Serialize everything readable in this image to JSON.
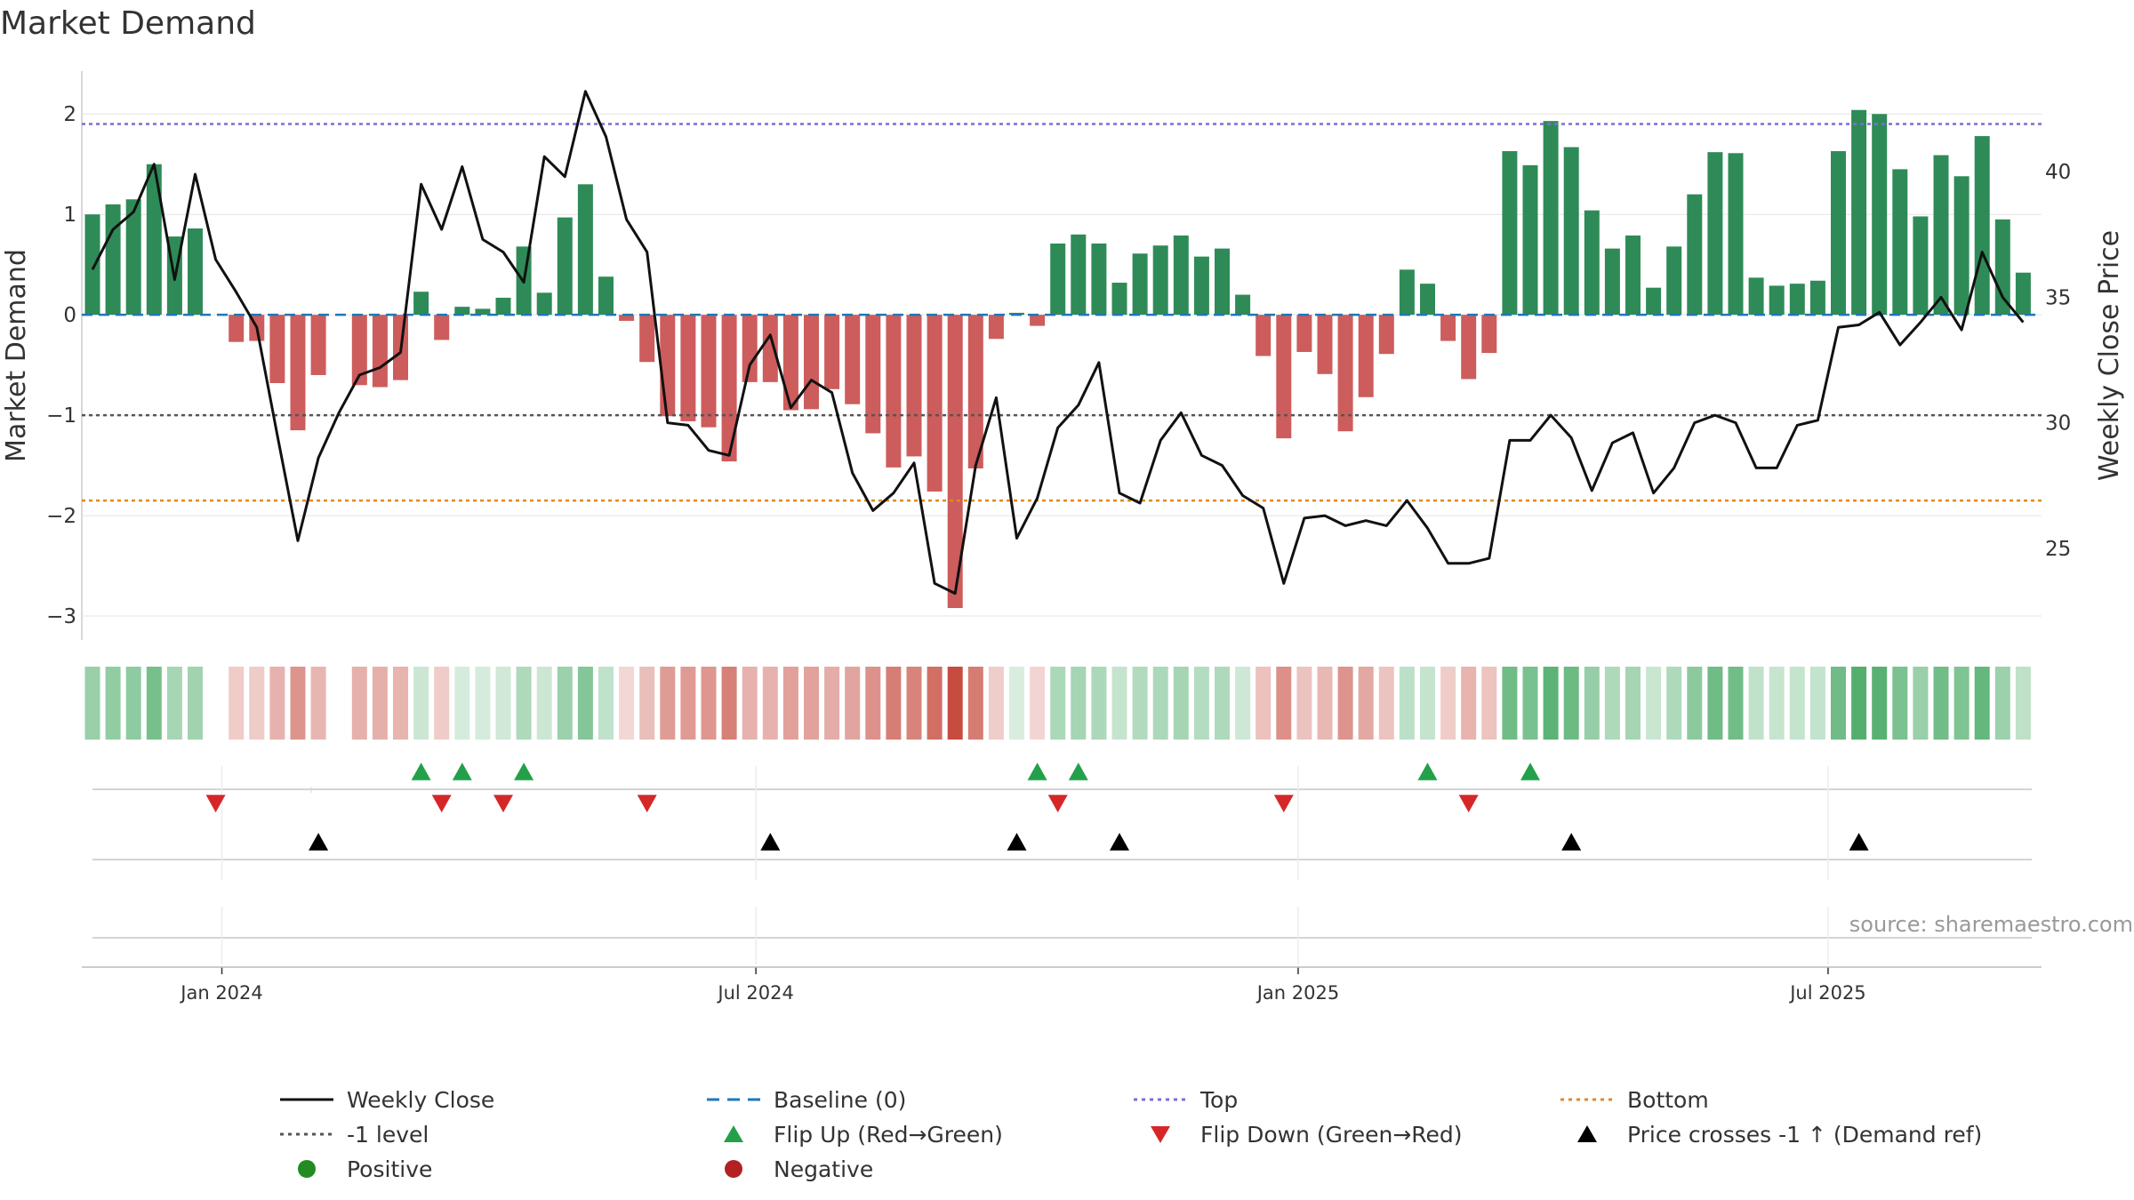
{
  "chart_data": {
    "type": "bar",
    "title": "Market Demand",
    "ylabel": "Market Demand",
    "y2label": "Weekly Close Price",
    "ylim": [
      -3.15,
      2.25
    ],
    "y2lim": [
      21.7,
      43.3
    ],
    "yticks": [
      "−3",
      "−2",
      "−1",
      "0",
      "1",
      "2"
    ],
    "y2ticks": [
      "25",
      "30",
      "35",
      "40"
    ],
    "top_level": 1.9,
    "bottom_level": -1.85,
    "minus_one_level": -1,
    "date_ticks": [
      {
        "label": "Jan 2024",
        "index": 6.3
      },
      {
        "label": "Jul 2024",
        "index": 32.3
      },
      {
        "label": "Jan 2025",
        "index": 58.7
      },
      {
        "label": "Jul 2025",
        "index": 84.5
      }
    ],
    "demand": [
      1.0,
      1.1,
      1.15,
      1.5,
      0.78,
      0.86,
      0,
      -0.27,
      -0.26,
      -0.68,
      -1.15,
      -0.6,
      0,
      -0.7,
      -0.72,
      -0.65,
      0.23,
      -0.25,
      0.08,
      0.06,
      0.17,
      0.68,
      0.22,
      0.97,
      1.3,
      0.38,
      -0.06,
      -0.47,
      -1.01,
      -1.06,
      -1.12,
      -1.46,
      -0.67,
      -0.67,
      -0.95,
      -0.94,
      -0.74,
      -0.89,
      -1.18,
      -1.52,
      -1.41,
      -1.76,
      -2.92,
      -1.53,
      -0.24,
      0.02,
      -0.11,
      0.71,
      0.8,
      0.71,
      0.32,
      0.61,
      0.69,
      0.79,
      0.58,
      0.66,
      0.2,
      -0.41,
      -1.23,
      -0.37,
      -0.59,
      -1.16,
      -0.82,
      -0.39,
      0.45,
      0.31,
      -0.26,
      -0.64,
      -0.38,
      1.63,
      1.49,
      1.93,
      1.67,
      1.04,
      0.66,
      0.79,
      0.27,
      0.68,
      1.2,
      1.62,
      1.61,
      0.37,
      0.29,
      0.31,
      0.34,
      1.63,
      2.04,
      2.0,
      1.45,
      0.98,
      1.59,
      1.38,
      1.78,
      0.95,
      0.42
    ],
    "close": [
      36.1,
      37.7,
      38.4,
      40.3,
      35.7,
      39.9,
      36.5,
      35.2,
      33.8,
      29.5,
      25.3,
      28.6,
      30.4,
      31.9,
      32.2,
      32.8,
      39.5,
      37.7,
      40.2,
      37.3,
      36.8,
      35.6,
      40.6,
      39.8,
      43.2,
      41.4,
      38.1,
      36.8,
      30.0,
      29.9,
      28.9,
      28.7,
      32.3,
      33.5,
      30.6,
      31.7,
      31.2,
      28.0,
      26.5,
      27.2,
      28.4,
      23.6,
      23.2,
      28.3,
      31.0,
      25.4,
      27.0,
      29.8,
      30.7,
      32.4,
      27.2,
      26.8,
      29.3,
      30.4,
      28.7,
      28.3,
      27.1,
      26.6,
      23.6,
      26.2,
      26.3,
      25.9,
      26.1,
      25.9,
      26.9,
      25.8,
      24.4,
      24.4,
      24.6,
      29.3,
      29.3,
      30.3,
      29.4,
      27.3,
      29.2,
      29.6,
      27.2,
      28.2,
      30.0,
      30.3,
      30.0,
      28.2,
      28.2,
      29.9,
      30.1,
      33.8,
      33.9,
      34.4,
      33.1,
      34.0,
      35.0,
      33.7,
      36.8,
      35.0,
      34.0
    ],
    "flip_up_indices": [
      16,
      18,
      21,
      46,
      48,
      65,
      70
    ],
    "flip_down_indices": [
      6,
      17,
      20,
      27,
      47,
      58,
      67
    ],
    "price_cross_indices": [
      11,
      33,
      45,
      50,
      72,
      86
    ],
    "legend": [
      {
        "label": "Weekly Close",
        "kind": "solid",
        "color": "#111111"
      },
      {
        "label": "Baseline (0)",
        "kind": "dash",
        "color": "#1f77b4"
      },
      {
        "label": "Top",
        "kind": "dot",
        "color": "#7b6fd0"
      },
      {
        "label": "Bottom",
        "kind": "dot",
        "color": "#e08a1e"
      },
      {
        "label": "-1 level",
        "kind": "dot",
        "color": "#555555"
      },
      {
        "label": "Flip Up (Red→Green)",
        "kind": "triangle-up",
        "color": "#22a04a"
      },
      {
        "label": "Flip Down (Green→Red)",
        "kind": "triangle-down",
        "color": "#d62728"
      },
      {
        "label": "Price crosses -1 ↑ (Demand ref)",
        "kind": "triangle-up",
        "color": "#000000"
      },
      {
        "label": "Positive",
        "kind": "circle",
        "color": "#228b22"
      },
      {
        "label": "Negative",
        "kind": "circle",
        "color": "#b22222"
      }
    ],
    "source": "source: sharemaestro.com",
    "colors": {
      "positive": "#2e8b57",
      "negative": "#cd5c5c",
      "heat_pos": "#2e9e4f",
      "heat_neg": "#c0392b"
    }
  }
}
